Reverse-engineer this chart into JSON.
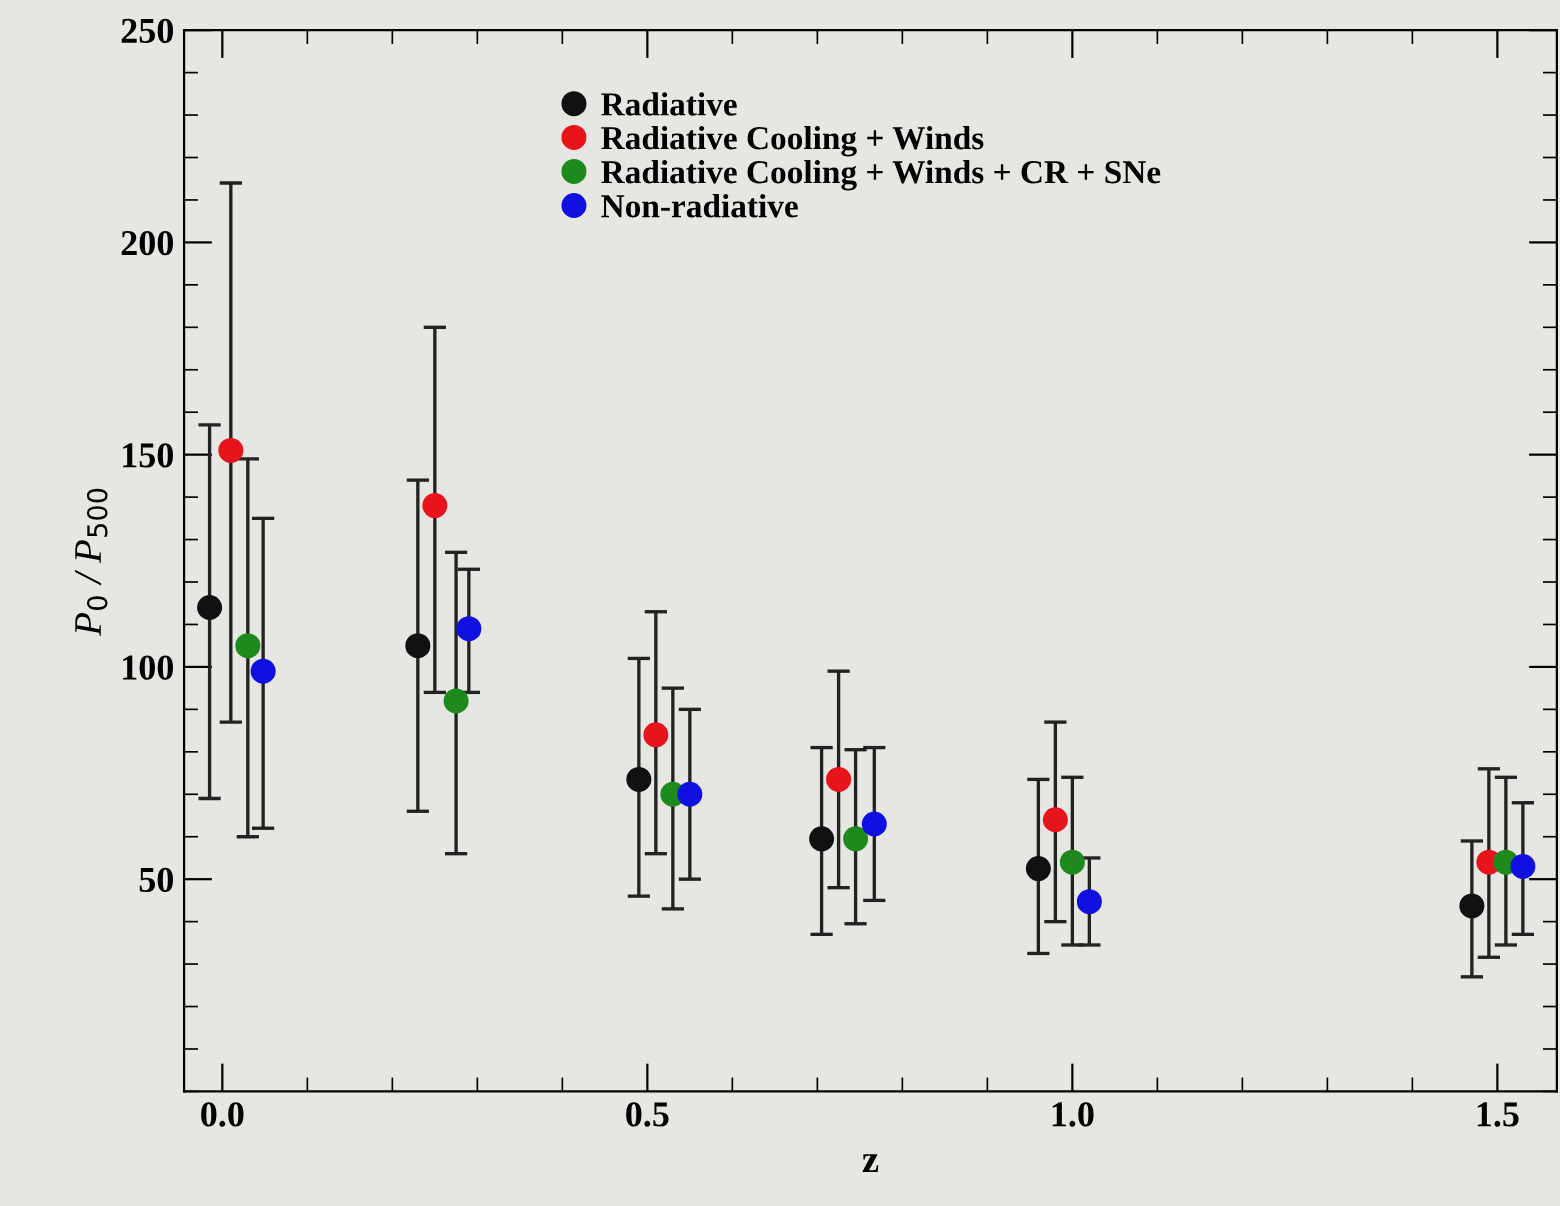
{
  "chart_data": {
    "type": "scatter",
    "xlabel": "z",
    "ylabel": "P$_{0}$ / P$_{500}$",
    "xlim": [
      -0.045,
      1.57
    ],
    "ylim": [
      0,
      250
    ],
    "xticks": [
      {
        "value": 0,
        "label": "0.0"
      },
      {
        "value": 0.5,
        "label": "0.5"
      },
      {
        "value": 1,
        "label": "1.0"
      },
      {
        "value": 1.5,
        "label": "1.5"
      }
    ],
    "yticks": [
      50,
      100,
      150,
      200,
      250
    ],
    "marker": "circle",
    "legend": "top",
    "grid": false,
    "series": [
      {
        "name": "Radiative",
        "color": "#111111",
        "x": [
          -0.015,
          0.23,
          0.49,
          0.705,
          0.96,
          1.47
        ],
        "values": [
          114,
          105,
          73.5,
          59.5,
          52.5,
          43.7
        ],
        "errors": [
          [
            69,
            157
          ],
          [
            66,
            144
          ],
          [
            46,
            102
          ],
          [
            37,
            81
          ],
          [
            32.5,
            73.5
          ],
          [
            27,
            59
          ]
        ]
      },
      {
        "name": "Radiative Cooling + Winds",
        "color": "#e8141c",
        "x": [
          0.01,
          0.25,
          0.51,
          0.725,
          0.98,
          1.49
        ],
        "values": [
          151,
          138,
          84,
          73.5,
          64,
          54
        ],
        "errors": [
          [
            87,
            214
          ],
          [
            94,
            180
          ],
          [
            56,
            113
          ],
          [
            48,
            99
          ],
          [
            40,
            87
          ],
          [
            31.6,
            76
          ]
        ]
      },
      {
        "name": "Radiative Cooling + Winds + CR + SNe",
        "color": "#1e8a1e",
        "x": [
          0.03,
          0.275,
          0.53,
          0.745,
          1.0,
          1.51
        ],
        "values": [
          105,
          92,
          70,
          59.5,
          54,
          54
        ],
        "errors": [
          [
            60,
            149
          ],
          [
            56,
            127
          ],
          [
            43,
            95
          ],
          [
            39.5,
            80.5
          ],
          [
            34.5,
            74
          ],
          [
            34.5,
            74
          ]
        ]
      },
      {
        "name": "Non-radiative",
        "color": "#1010e0",
        "x": [
          0.048,
          0.29,
          0.55,
          0.767,
          1.02,
          1.53
        ],
        "values": [
          99,
          109,
          70,
          63,
          44.7,
          53
        ],
        "errors": [
          [
            62,
            135
          ],
          [
            94,
            123
          ],
          [
            50,
            90
          ],
          [
            45,
            81
          ],
          [
            34.5,
            55
          ],
          [
            37,
            68
          ]
        ]
      }
    ]
  }
}
